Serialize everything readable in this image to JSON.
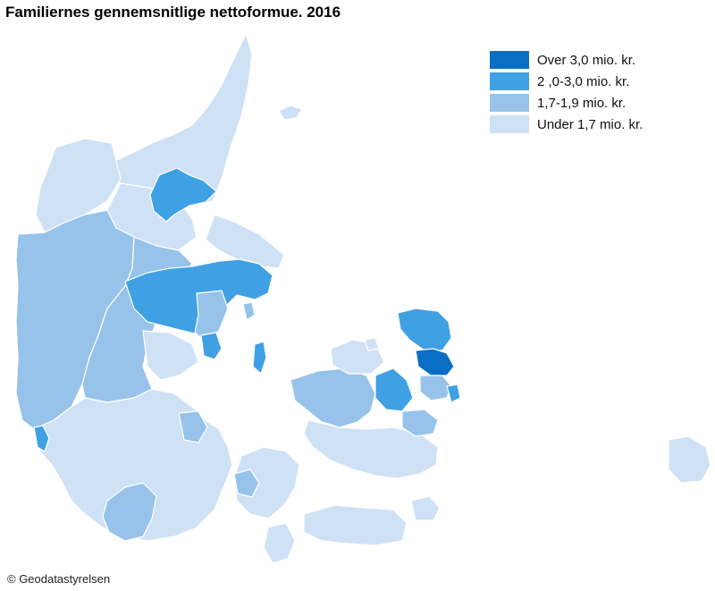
{
  "title": "Familiernes gennemsnitlige nettoformue. 2016",
  "credit": "© Geodatastyrelsen",
  "legend": [
    {
      "label": "Over 3,0 mio. kr.",
      "color": "#0a6fc4"
    },
    {
      "label": "2 ,0-3,0 mio. kr.",
      "color": "#3fa1e3"
    },
    {
      "label": "1,7-1,9 mio. kr.",
      "color": "#97c3eb"
    },
    {
      "label": "Under 1,7 mio. kr.",
      "color": "#cfe1f5"
    }
  ]
}
